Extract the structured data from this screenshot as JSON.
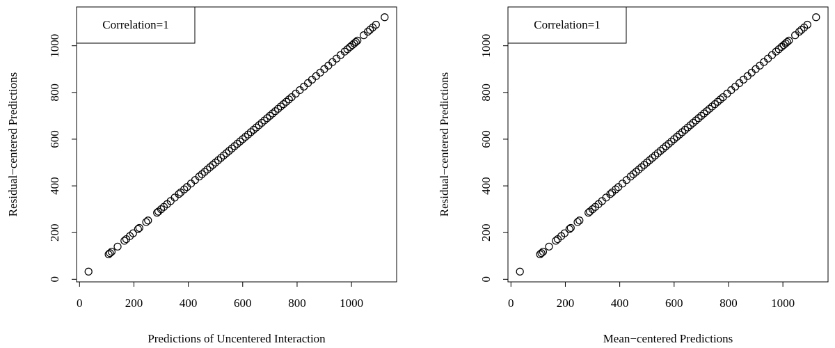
{
  "chart_data": [
    {
      "type": "scatter",
      "x_label": "Predictions of Uncentered Interaction",
      "y_label": "Residual−centered Predictions",
      "annotation": "Correlation=1",
      "xlim": [
        -11,
        1166
      ],
      "ylim": [
        -11,
        1166
      ],
      "xticks": [
        0,
        200,
        400,
        600,
        800,
        1000
      ],
      "yticks": [
        0,
        200,
        400,
        600,
        800,
        1000
      ],
      "color": "#000000",
      "x": [
        33,
        107,
        112,
        118,
        140,
        165,
        172,
        185,
        197,
        215,
        220,
        245,
        252,
        285,
        290,
        300,
        310,
        322,
        335,
        350,
        365,
        372,
        385,
        395,
        410,
        425,
        440,
        450,
        460,
        470,
        480,
        490,
        500,
        510,
        520,
        530,
        540,
        550,
        560,
        570,
        580,
        590,
        600,
        610,
        620,
        630,
        640,
        650,
        660,
        670,
        680,
        690,
        700,
        710,
        720,
        730,
        740,
        750,
        760,
        770,
        780,
        795,
        810,
        825,
        840,
        855,
        870,
        885,
        900,
        915,
        930,
        945,
        960,
        975,
        985,
        995,
        1003,
        1010,
        1016,
        1022,
        1045,
        1060,
        1068,
        1078,
        1090,
        1122
      ],
      "y": [
        33,
        107,
        112,
        118,
        140,
        165,
        172,
        185,
        197,
        215,
        220,
        245,
        252,
        285,
        290,
        300,
        310,
        322,
        335,
        350,
        365,
        372,
        385,
        395,
        410,
        425,
        440,
        450,
        460,
        470,
        480,
        490,
        500,
        510,
        520,
        530,
        540,
        550,
        560,
        570,
        580,
        590,
        600,
        610,
        620,
        630,
        640,
        650,
        660,
        670,
        680,
        690,
        700,
        710,
        720,
        730,
        740,
        750,
        760,
        770,
        780,
        795,
        810,
        825,
        840,
        855,
        870,
        885,
        900,
        915,
        930,
        945,
        960,
        975,
        985,
        995,
        1003,
        1010,
        1016,
        1022,
        1045,
        1060,
        1068,
        1078,
        1090,
        1122
      ]
    },
    {
      "type": "scatter",
      "x_label": "Mean−centered Predictions",
      "y_label": "Residual−centered Predictions",
      "annotation": "Correlation=1",
      "xlim": [
        -11,
        1166
      ],
      "ylim": [
        -11,
        1166
      ],
      "xticks": [
        0,
        200,
        400,
        600,
        800,
        1000
      ],
      "yticks": [
        0,
        200,
        400,
        600,
        800,
        1000
      ],
      "color": "#000000",
      "x": [
        33,
        107,
        112,
        118,
        140,
        165,
        172,
        185,
        197,
        215,
        220,
        245,
        252,
        285,
        290,
        300,
        310,
        322,
        335,
        350,
        365,
        372,
        385,
        395,
        410,
        425,
        440,
        450,
        460,
        470,
        480,
        490,
        500,
        510,
        520,
        530,
        540,
        550,
        560,
        570,
        580,
        590,
        600,
        610,
        620,
        630,
        640,
        650,
        660,
        670,
        680,
        690,
        700,
        710,
        720,
        730,
        740,
        750,
        760,
        770,
        780,
        795,
        810,
        825,
        840,
        855,
        870,
        885,
        900,
        915,
        930,
        945,
        960,
        975,
        985,
        995,
        1003,
        1010,
        1016,
        1022,
        1045,
        1060,
        1068,
        1078,
        1090,
        1122
      ],
      "y": [
        33,
        107,
        112,
        118,
        140,
        165,
        172,
        185,
        197,
        215,
        220,
        245,
        252,
        285,
        290,
        300,
        310,
        322,
        335,
        350,
        365,
        372,
        385,
        395,
        410,
        425,
        440,
        450,
        460,
        470,
        480,
        490,
        500,
        510,
        520,
        530,
        540,
        550,
        560,
        570,
        580,
        590,
        600,
        610,
        620,
        630,
        640,
        650,
        660,
        670,
        680,
        690,
        700,
        710,
        720,
        730,
        740,
        750,
        760,
        770,
        780,
        795,
        810,
        825,
        840,
        855,
        870,
        885,
        900,
        915,
        930,
        945,
        960,
        975,
        985,
        995,
        1003,
        1010,
        1016,
        1022,
        1045,
        1060,
        1068,
        1078,
        1090,
        1122
      ]
    }
  ]
}
